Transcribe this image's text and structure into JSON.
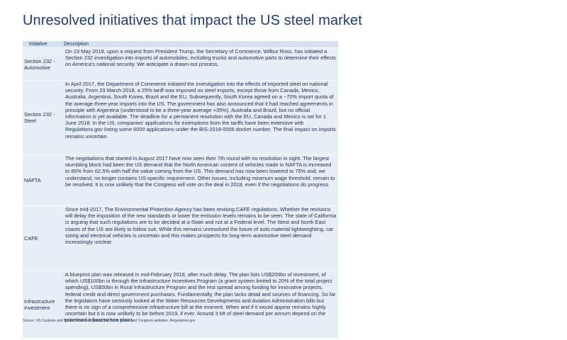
{
  "title": "Unresolved initiatives that impact the US steel market",
  "table": {
    "headers": {
      "initiative": "Initiative",
      "description": "Description"
    },
    "rows": [
      {
        "initiative": "Section 232 - Automotive",
        "description": "On 23 May 2018, upon a request from President Trump, the Secretary of Commerce, Wilbur Ross, has initiated a Section 232 investigation into imports of automobiles, including trucks and automotive parts to determine their effects on America's national security. We anticipate a drawn-out process."
      },
      {
        "initiative": "Section 232 - Steel",
        "description": "In April 2017, the Department of Commerce initiated the investigation into the effects of imported steel on national security. From 23 March 2018, a 25% tariff was imposed on steel imports, except those from Canada, Mexico, Australia, Argentina, South Korea, Brazil and the EU. Subsequently, South Korea agreed on a ~70% import quota of the average three-year imports into the US. The government has also announced that it had reached agreements in principle with Argentina (understood to be a three-year average +35%), Australia and Brazil, but no official information is yet available. The deadline for a permanent resolution with the EU, Canada and Mexico is set for 1 June 2018. In the US, companies' applications for exemptions from the tariffs have been extensive with Regulations.gov listing some 6000 applications under the BIS-2018-0006 docket number. The final impact on imports remains uncertain."
      },
      {
        "initiative": "NAFTA",
        "description": "The negotiations that started in August 2017 have now seen their 7th round with no resolution in sight. The largest stumbling block had been the US demand that the North American content of vehicles made in NAFTA is increased to 85% from 62.5% with half the value coming from the US. This demand has now been lowered to 75% and, we understand, no longer contains US-specific requirement. Other issues, including minimum wage threshold, remain to be resolved. It is now unlikely that the Congress will vote on the deal in 2018, even if the negotiations do progress."
      },
      {
        "initiative": "CAFE",
        "description": "Since mid-2017, The Environmental Protection Agency has been revising CAFE regulations. Whether the revisions will delay the imposition of the new standards or lower the emission levels remains to be seen. The state of California is arguing that such regulations are to be decided at a State and not at a Federal level. The West and North East coasts of the US are likely to follow suit. While this remains unresolved the future of auto material lightweighting, car sizing and electrical vehicles is uncertain and this makes prospects for long-term automotive steel demand increasingly unclear."
      },
      {
        "initiative": "Infrastructure Investment",
        "description": "A blueprint plan was released in mid-February 2018, after much delay. The plan lists US$200bn of investment, of which US$100bn is through the Infrastructure Incentives Program (a grant system limited to 20% of the total project spending), US$50bn in Rural Infrastructure Program and the rest spread among funding for innovative projects, federal credit and direct government purchases. Fundamentally, the plan lacks detail and sources of financing. So far the legislators have seriously looked at the Water Resources Developments and Aviation Administration bills but there is no sign of a comprehensive infrastructure bill at the moment. When and if it would appear remains highly uncertain but it is now unlikely to be before 2019, if ever. Around 3 Mt of steel demand per annum depend on the promised infrastructure plans."
      }
    ]
  },
  "source": "Source: US Customs and Border Protection, press, the White House and Congress websites, Regulations.gov"
}
